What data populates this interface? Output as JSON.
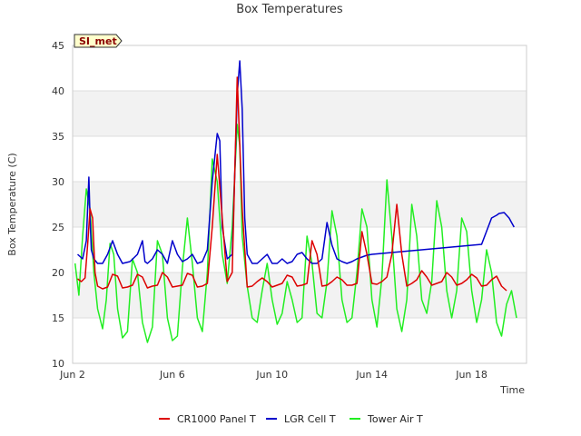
{
  "chart_data": {
    "type": "line",
    "title": "Box Temperatures",
    "xlabel": "Time",
    "ylabel": "Box Temperature (C)",
    "site_badge": "SI_met",
    "ylim": [
      10,
      45
    ],
    "xlim": [
      0,
      18.2
    ],
    "yticks": [
      10,
      15,
      20,
      25,
      30,
      35,
      40,
      45
    ],
    "xticks": [
      {
        "value": 0,
        "label": "Jun 2"
      },
      {
        "value": 4,
        "label": "Jun 6"
      },
      {
        "value": 8,
        "label": "Jun 10"
      },
      {
        "value": 12,
        "label": "Jun 14"
      },
      {
        "value": 16,
        "label": "Jun 18"
      }
    ],
    "bands": [
      [
        15,
        20
      ],
      [
        25,
        30
      ],
      [
        35,
        40
      ]
    ],
    "grid": true,
    "legend_position": "bottom",
    "series": [
      {
        "name": "CR1000 Panel T",
        "color": "#dd0000",
        "x": [
          0.2,
          0.35,
          0.5,
          0.6,
          0.7,
          0.8,
          0.9,
          1.0,
          1.2,
          1.4,
          1.6,
          1.8,
          2.0,
          2.2,
          2.4,
          2.6,
          2.8,
          3.0,
          3.2,
          3.4,
          3.6,
          3.8,
          4.0,
          4.2,
          4.4,
          4.6,
          4.8,
          5.0,
          5.2,
          5.4,
          5.6,
          5.8,
          6.0,
          6.2,
          6.4,
          6.6,
          6.8,
          7.0,
          7.2,
          7.4,
          7.6,
          7.8,
          8.0,
          8.2,
          8.4,
          8.6,
          8.8,
          9.0,
          9.2,
          9.4,
          9.6,
          9.8,
          10.0,
          10.2,
          10.4,
          10.6,
          10.8,
          11.0,
          11.2,
          11.4,
          11.6,
          11.8,
          12.0,
          12.2,
          12.4,
          12.6,
          12.8,
          13.0,
          13.2,
          13.4,
          13.6,
          13.8,
          14.0,
          14.2,
          14.4,
          14.6,
          14.8,
          15.0,
          15.2,
          15.4,
          15.6,
          15.8,
          16.0,
          16.2,
          16.4,
          16.6,
          16.8,
          17.0,
          17.2,
          17.4
        ],
        "y": [
          19.3,
          19.0,
          19.4,
          23.0,
          27.0,
          26.0,
          20.0,
          18.5,
          18.2,
          18.4,
          19.8,
          19.6,
          18.3,
          18.4,
          18.6,
          19.8,
          19.5,
          18.3,
          18.5,
          18.6,
          20.0,
          19.5,
          18.4,
          18.5,
          18.6,
          19.9,
          19.7,
          18.4,
          18.5,
          18.8,
          25.0,
          33.0,
          26.0,
          19.0,
          20.0,
          41.5,
          27.0,
          18.4,
          18.5,
          19.0,
          19.4,
          19.0,
          18.4,
          18.6,
          18.8,
          19.7,
          19.5,
          18.5,
          18.6,
          18.8,
          23.5,
          22.0,
          18.5,
          18.6,
          19.0,
          19.5,
          19.2,
          18.6,
          18.6,
          18.8,
          24.5,
          22.0,
          18.8,
          18.7,
          19.0,
          19.5,
          22.0,
          27.5,
          22.0,
          18.5,
          18.8,
          19.2,
          20.2,
          19.5,
          18.6,
          18.8,
          19.0,
          20.0,
          19.5,
          18.6,
          18.8,
          19.2,
          19.8,
          19.4,
          18.5,
          18.6,
          19.2,
          19.6,
          18.5,
          18.0
        ]
      },
      {
        "name": "LGR Cell T",
        "color": "#0000cc",
        "x": [
          0.2,
          0.4,
          0.55,
          0.65,
          0.7,
          0.75,
          0.85,
          1.0,
          1.2,
          1.4,
          1.6,
          1.8,
          2.0,
          2.3,
          2.6,
          2.8,
          2.9,
          3.0,
          3.2,
          3.4,
          3.6,
          3.8,
          4.0,
          4.2,
          4.4,
          4.6,
          4.8,
          5.0,
          5.2,
          5.4,
          5.6,
          5.8,
          5.9,
          6.0,
          6.2,
          6.4,
          6.6,
          6.7,
          6.8,
          6.9,
          7.0,
          7.2,
          7.4,
          7.6,
          7.8,
          8.0,
          8.2,
          8.4,
          8.6,
          8.8,
          9.0,
          9.2,
          9.4,
          9.6,
          9.8,
          10.0,
          10.2,
          10.4,
          10.6,
          10.8,
          11.0,
          11.2,
          11.4,
          11.6,
          11.8,
          12.0,
          12.4,
          12.8,
          13.2,
          13.6,
          14.0,
          14.4,
          14.8,
          15.2,
          15.6,
          16.0,
          16.4,
          16.8,
          17.0,
          17.1,
          17.3,
          17.5,
          17.6,
          17.7
        ],
        "y": [
          22.0,
          21.5,
          23.5,
          30.5,
          26.0,
          22.5,
          21.5,
          21.0,
          21.0,
          22.0,
          23.5,
          22.0,
          21.0,
          21.2,
          22.0,
          23.5,
          21.2,
          21.0,
          21.5,
          22.5,
          22.0,
          21.0,
          23.5,
          22.0,
          21.2,
          21.5,
          22.0,
          21.0,
          21.2,
          22.5,
          30.0,
          35.3,
          34.5,
          25.0,
          21.5,
          22.0,
          39.5,
          43.3,
          38.0,
          26.0,
          22.0,
          21.0,
          21.0,
          21.5,
          22.0,
          21.0,
          21.0,
          21.5,
          21.0,
          21.2,
          22.0,
          22.2,
          21.5,
          21.0,
          21.0,
          21.5,
          25.5,
          23.0,
          21.5,
          21.2,
          21.0,
          21.2,
          21.5,
          21.7,
          21.9,
          22.0,
          22.1,
          22.2,
          22.3,
          22.4,
          22.5,
          22.6,
          22.7,
          22.8,
          22.9,
          23.0,
          23.1,
          26.0,
          26.3,
          26.5,
          26.6,
          26.0,
          25.5,
          25.0
        ]
      },
      {
        "name": "Tower Air T",
        "color": "#22ee22",
        "x": [
          0.1,
          0.25,
          0.4,
          0.55,
          0.7,
          0.85,
          1.0,
          1.2,
          1.35,
          1.5,
          1.65,
          1.8,
          2.0,
          2.2,
          2.4,
          2.6,
          2.8,
          3.0,
          3.2,
          3.4,
          3.6,
          3.8,
          4.0,
          4.2,
          4.4,
          4.6,
          4.8,
          5.0,
          5.2,
          5.4,
          5.6,
          5.8,
          6.0,
          6.2,
          6.4,
          6.6,
          6.7,
          6.8,
          7.0,
          7.2,
          7.4,
          7.6,
          7.8,
          8.0,
          8.2,
          8.4,
          8.6,
          8.8,
          9.0,
          9.2,
          9.4,
          9.6,
          9.8,
          10.0,
          10.2,
          10.4,
          10.6,
          10.8,
          11.0,
          11.2,
          11.4,
          11.6,
          11.8,
          12.0,
          12.2,
          12.4,
          12.6,
          12.8,
          13.0,
          13.2,
          13.4,
          13.6,
          13.8,
          14.0,
          14.2,
          14.4,
          14.6,
          14.8,
          15.0,
          15.2,
          15.4,
          15.6,
          15.8,
          16.0,
          16.2,
          16.4,
          16.6,
          16.8,
          17.0,
          17.2,
          17.4,
          17.6,
          17.8
        ],
        "y": [
          21.0,
          17.5,
          24.0,
          29.2,
          27.0,
          20.0,
          16.0,
          13.8,
          17.0,
          23.2,
          22.0,
          16.0,
          12.8,
          13.5,
          21.5,
          20.0,
          14.5,
          12.3,
          14.0,
          23.5,
          22.0,
          15.0,
          12.5,
          13.0,
          20.5,
          26.0,
          21.0,
          15.0,
          13.5,
          20.0,
          32.5,
          30.0,
          22.0,
          18.8,
          25.0,
          36.3,
          34.0,
          24.0,
          18.5,
          15.0,
          14.5,
          18.0,
          21.0,
          17.0,
          14.3,
          15.5,
          19.0,
          17.0,
          14.5,
          15.0,
          24.0,
          21.0,
          15.5,
          15.0,
          19.0,
          26.8,
          24.0,
          17.0,
          14.5,
          15.0,
          20.0,
          27.0,
          25.0,
          17.0,
          14.0,
          19.5,
          30.2,
          24.0,
          16.0,
          13.5,
          17.0,
          27.5,
          24.0,
          17.0,
          15.5,
          19.0,
          27.9,
          25.0,
          18.0,
          15.0,
          18.0,
          26.0,
          24.5,
          18.0,
          14.5,
          17.0,
          22.5,
          20.0,
          14.5,
          13.0,
          16.5,
          18.0,
          15.0
        ]
      }
    ]
  }
}
